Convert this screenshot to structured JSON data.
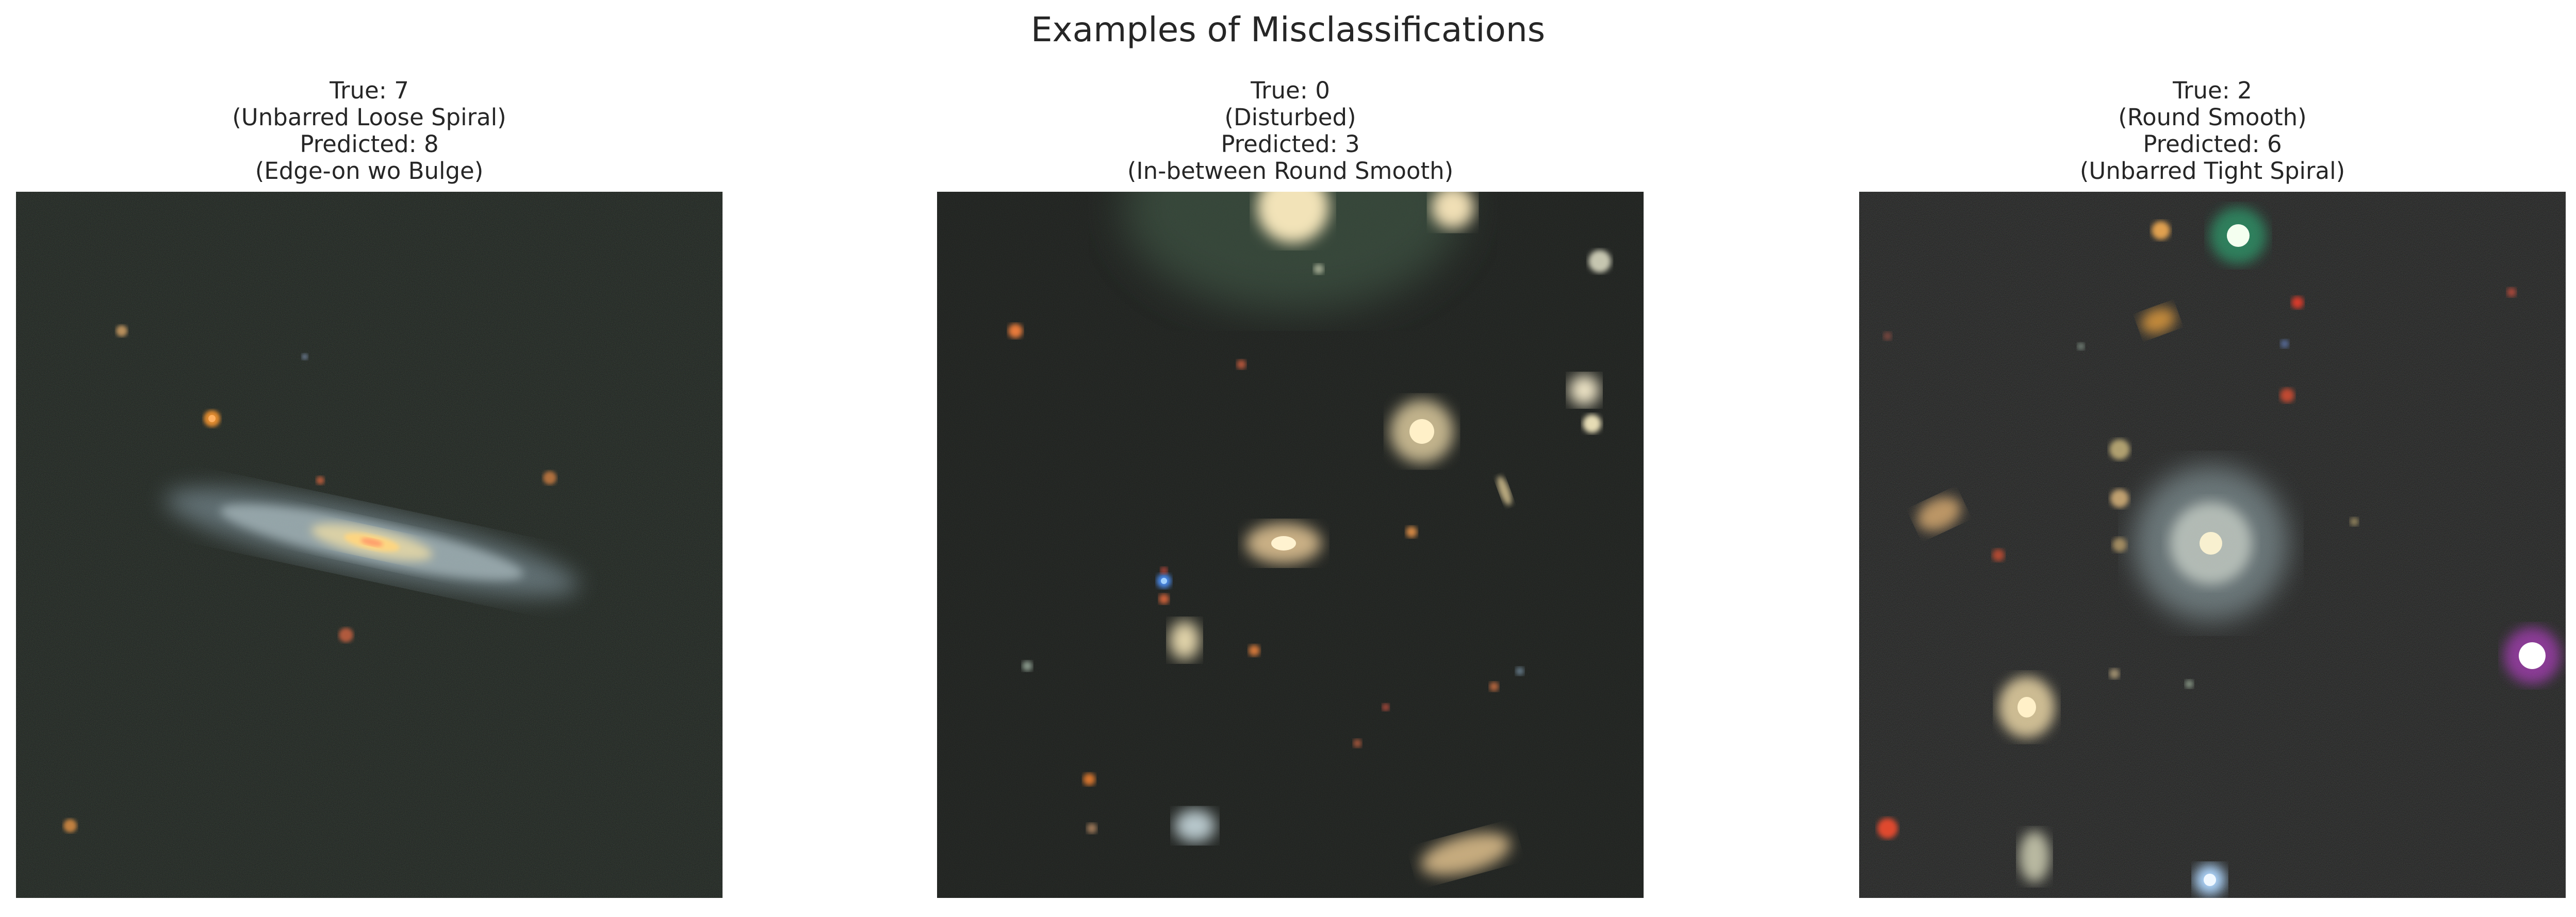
{
  "figure": {
    "title": "Examples of Misclassifications"
  },
  "panels": [
    {
      "true_line": "True: 7",
      "true_class": "(Unbarred Loose Spiral)",
      "pred_line": "Predicted: 8",
      "pred_class": "(Edge-on wo Bulge)"
    },
    {
      "true_line": "True: 0",
      "true_class": "(Disturbed)",
      "pred_line": "Predicted: 3",
      "pred_class": "(In-between Round Smooth)"
    },
    {
      "true_line": "True: 2",
      "true_class": "(Round Smooth)",
      "pred_line": "Predicted: 6",
      "pred_class": "(Unbarred Tight Spiral)"
    }
  ]
}
